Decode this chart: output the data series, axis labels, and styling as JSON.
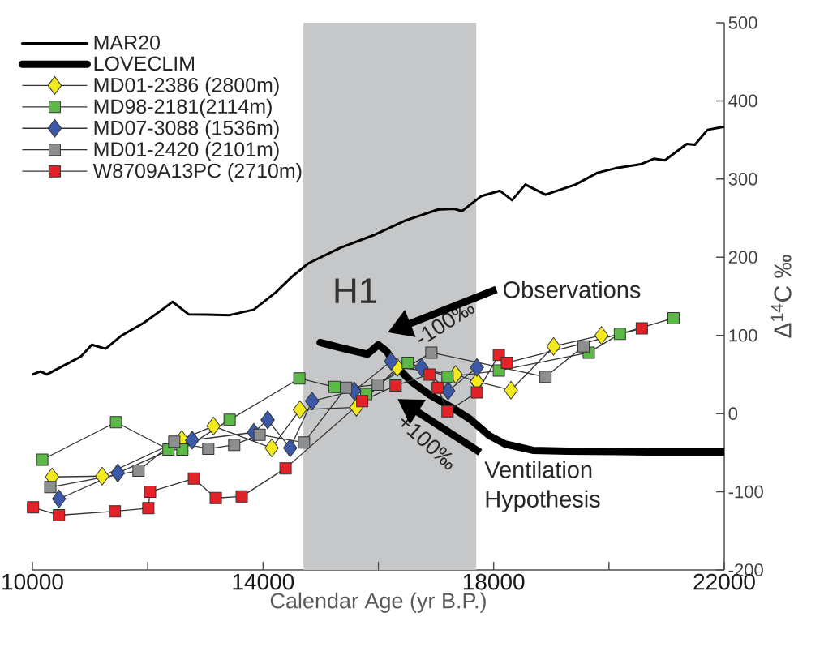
{
  "chart_data": {
    "type": "line",
    "xlabel": "Calendar Age (yr B.P.)",
    "ylabel": "Δ$^{14}$C ‰",
    "xlim": [
      10000,
      22000
    ],
    "ylim": [
      -200,
      500
    ],
    "xticks": [
      10000,
      {
        "value": 12000,
        "label": null
      },
      14000,
      {
        "value": 16000,
        "label": null
      },
      18000,
      {
        "value": 20000,
        "label": null
      },
      22000
    ],
    "yticks": [
      -200,
      -100,
      0,
      100,
      200,
      300,
      400,
      500
    ],
    "legend": "top left",
    "grid": false,
    "bands": [
      {
        "axis": "x",
        "from": 14700,
        "to": 17700,
        "label": "H1",
        "color": "#c6c7c9"
      }
    ],
    "annotations": [
      "Observations",
      "Ventilation Hypothesis",
      "-100‰",
      "+100‰"
    ],
    "series": [
      {
        "name": "MAR20",
        "type": "line",
        "marker": "none",
        "color": "#000000",
        "x": [
          10000,
          10140,
          10250,
          10610,
          10840,
          11030,
          11270,
          11550,
          11930,
          12250,
          12430,
          12710,
          13420,
          13840,
          14220,
          14500,
          14780,
          15340,
          15910,
          16470,
          17030,
          17310,
          17450,
          17780,
          18110,
          18320,
          18550,
          18900,
          19420,
          19800,
          20120,
          20550,
          20780,
          20970,
          21350,
          21490,
          21710,
          22000
        ],
        "values": [
          50,
          54,
          50,
          64,
          73,
          88,
          83,
          100,
          116,
          133,
          143,
          127,
          126,
          133,
          155,
          175,
          192,
          212,
          228,
          247,
          261,
          262,
          259,
          278,
          285,
          273,
          293,
          280,
          293,
          308,
          314,
          319,
          326,
          324,
          345,
          344,
          363,
          367
        ]
      },
      {
        "name": "LOVECLIM",
        "type": "line",
        "marker": "none",
        "color": "#000000",
        "x": [
          14990,
          15300,
          15810,
          16000,
          16140,
          16330,
          16570,
          16890,
          17270,
          17590,
          17920,
          18200,
          18680,
          19280,
          20690,
          22000
        ],
        "values": [
          91,
          85,
          76,
          88,
          80,
          59,
          41,
          24,
          8,
          -7,
          -28,
          -39,
          -47,
          -48,
          -49,
          -49
        ]
      },
      {
        "name": "MD01-2386 (2800m)",
        "type": "line",
        "marker": "diamond",
        "color": "#f2e91f",
        "x": [
          10340,
          11210,
          12590,
          13140,
          14150,
          14640,
          15620,
          16330,
          17340,
          17710,
          18300,
          19040,
          19870
        ],
        "values": [
          -81,
          -80,
          -33,
          -16,
          -44,
          5,
          8,
          59,
          50,
          41,
          30,
          86,
          100
        ]
      },
      {
        "name": "MD98-2181(2114m)",
        "type": "line",
        "marker": "square",
        "color": "#5cb847",
        "x": [
          10170,
          11450,
          12360,
          12600,
          13420,
          14630,
          15240,
          15790,
          16510,
          17200,
          18090,
          19650,
          20190,
          21120
        ],
        "values": [
          -59,
          -11,
          -46,
          -46,
          -8,
          45,
          34,
          25,
          65,
          47,
          55,
          78,
          102,
          122
        ]
      },
      {
        "name": "MD07-3088 (1536m)",
        "type": "line",
        "marker": "diamond",
        "color": "#3c59a8",
        "x": [
          10460,
          11480,
          12770,
          13840,
          14080,
          14470,
          14850,
          15580,
          16220,
          16750,
          17210,
          17710
        ],
        "values": [
          -109,
          -76,
          -34,
          -24,
          -8,
          -44,
          16,
          29,
          67,
          59,
          29,
          59
        ]
      },
      {
        "name": "MD01-2420 (2101m)",
        "type": "line",
        "marker": "square",
        "color": "#8d8e90",
        "x": [
          10310,
          11840,
          12460,
          13050,
          13500,
          13940,
          14710,
          15440,
          15990,
          16920,
          18900,
          19560
        ],
        "values": [
          -94,
          -73,
          -36,
          -45,
          -40,
          -27,
          -37,
          33,
          37,
          78,
          47,
          86
        ]
      },
      {
        "name": "W8709A13PC (2710m)",
        "type": "line",
        "marker": "square",
        "color": "#e22128",
        "x": [
          10010,
          10460,
          11430,
          12010,
          12040,
          12800,
          13180,
          13630,
          14390,
          15720,
          16300,
          16890,
          17030,
          17200,
          17710,
          18090,
          18230,
          20570
        ],
        "values": [
          -120,
          -130,
          -125,
          -121,
          -100,
          -83,
          -108,
          -106,
          -70,
          16,
          36,
          50,
          33,
          3,
          27,
          75,
          65,
          109
        ]
      }
    ]
  }
}
